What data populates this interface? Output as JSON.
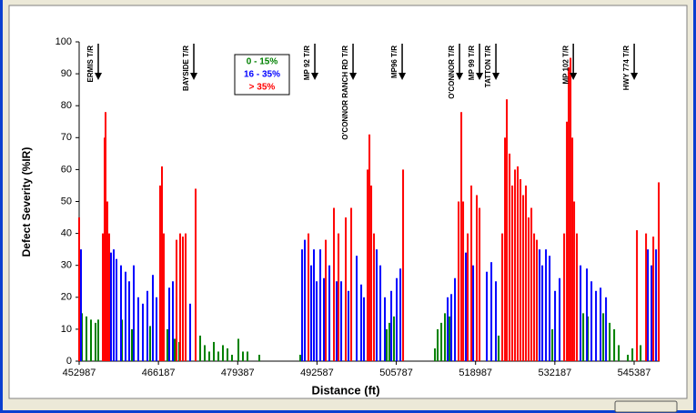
{
  "chart_data": {
    "type": "bar",
    "xlabel": "Distance (ft)",
    "ylabel": "Defect Severity (%IR)",
    "xlim": [
      452987,
      549630
    ],
    "xticks": [
      452987,
      466187,
      479387,
      492587,
      505787,
      518987,
      532187,
      545387
    ],
    "ylim": [
      0,
      100
    ],
    "yticks": [
      0,
      10,
      20,
      30,
      40,
      50,
      60,
      70,
      80,
      90,
      100
    ],
    "series": [
      {
        "name": "0 - 15%",
        "color": "#008000",
        "x": [
          453442,
          454199,
          454957,
          455714,
          456169,
          460108,
          461774,
          464804,
          467683,
          468895,
          469652,
          473137,
          473894,
          474652,
          475409,
          476167,
          476924,
          477682,
          478439,
          479500,
          480257,
          481015,
          482984,
          489802,
          504194,
          504649,
          505406,
          512224,
          512678,
          513284,
          513890,
          514648,
          522829,
          531767,
          536918,
          537676,
          540251,
          541312,
          542069,
          542827,
          544342,
          545099,
          546463
        ],
        "values": [
          15,
          14,
          13,
          12,
          13,
          13,
          10,
          11,
          10,
          7,
          6,
          8,
          5,
          3,
          6,
          3,
          5,
          4,
          2,
          7,
          3,
          3,
          2,
          2,
          10,
          12,
          14,
          4,
          10,
          12,
          15,
          14,
          8,
          10,
          15,
          14,
          15,
          12,
          10,
          5,
          2,
          4,
          5
        ]
      },
      {
        "name": "16 - 35%",
        "color": "#0000ff",
        "x": [
          453290,
          458290,
          458744,
          459199,
          459956,
          460714,
          461320,
          462077,
          462835,
          463592,
          464350,
          465259,
          465865,
          467986,
          468592,
          471470,
          490105,
          490559,
          491620,
          492074,
          492529,
          493135,
          493741,
          494650,
          495862,
          496619,
          497831,
          499195,
          499952,
          500407,
          502528,
          503134,
          503891,
          504952,
          505861,
          506467,
          514345,
          514951,
          515557,
          517375,
          518587,
          520859,
          521617,
          522374,
          529646,
          530101,
          530707,
          531313,
          532222,
          532979,
          536464,
          537524,
          538282,
          539039,
          539797,
          540706,
          547675,
          548281,
          549038
        ],
        "values": [
          35,
          34,
          35,
          32,
          30,
          28,
          25,
          30,
          20,
          18,
          22,
          27,
          20,
          23,
          25,
          18,
          35,
          38,
          30,
          35,
          25,
          35,
          26,
          30,
          25,
          25,
          22,
          33,
          24,
          20,
          35,
          30,
          20,
          22,
          26,
          29,
          20,
          21,
          26,
          34,
          30,
          28,
          31,
          25,
          35,
          30,
          35,
          33,
          22,
          26,
          30,
          29,
          25,
          22,
          23,
          20,
          35,
          30,
          35
        ]
      },
      {
        "name": "> 35%",
        "color": "#ff0000",
        "x": [
          452987,
          456926,
          457229,
          457381,
          457684,
          457987,
          466471,
          466774,
          467077,
          469198,
          469804,
          470258,
          470713,
          472379,
          491165,
          494044,
          495407,
          496165,
          497377,
          498286,
          501013,
          501316,
          501619,
          502073,
          506921,
          516163,
          516617,
          516920,
          517678,
          518284,
          519193,
          519647,
          523435,
          523889,
          524192,
          524647,
          525101,
          525556,
          526010,
          526465,
          526919,
          527374,
          527828,
          528283,
          528737,
          529192,
          533737,
          534191,
          534494,
          534797,
          535100,
          535403,
          535858,
          545857,
          547372,
          548584,
          549493
        ],
        "values": [
          45,
          40,
          70,
          78,
          50,
          40,
          55,
          61,
          40,
          38,
          40,
          39,
          40,
          54,
          40,
          38,
          48,
          40,
          45,
          48,
          60,
          71,
          55,
          40,
          60,
          50,
          78,
          50,
          40,
          55,
          52,
          48,
          40,
          70,
          82,
          65,
          55,
          60,
          61,
          57,
          52,
          55,
          45,
          48,
          40,
          38,
          40,
          75,
          92,
          95,
          70,
          50,
          40,
          41,
          40,
          39,
          56
        ]
      }
    ],
    "annotations": [
      {
        "text": "ERMIS T/R",
        "x": 456169
      },
      {
        "text": "BAYSIDE T/R",
        "x": 472076
      },
      {
        "text": "MP 92 T/R",
        "x": 492226
      },
      {
        "text": "O'CONNOR RANCH RD T/R",
        "x": 498589
      },
      {
        "text": "MP96 T/R",
        "x": 506770
      },
      {
        "text": "O'CONNOR T/R",
        "x": 516314
      },
      {
        "text": "MP 99 T/R",
        "x": 519647
      },
      {
        "text": "TATTON T/R",
        "x": 522374
      },
      {
        "text": "MP 102 T/R",
        "x": 535264
      },
      {
        "text": "HWY 774 T/R",
        "x": 545402
      }
    ]
  }
}
